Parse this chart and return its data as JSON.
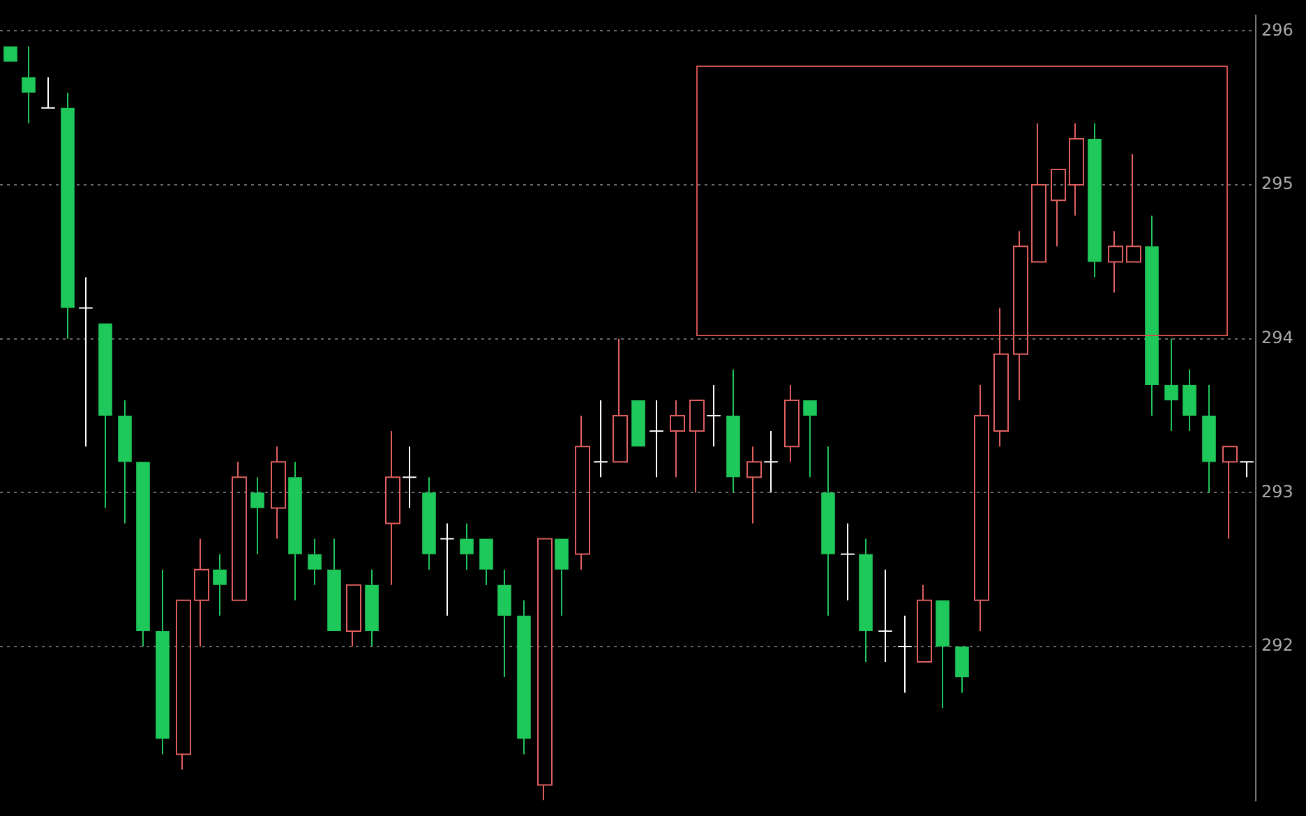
{
  "chart_data": {
    "type": "candlestick",
    "categories": [
      null,
      null,
      null,
      null,
      null,
      null,
      null,
      null,
      null,
      null,
      null,
      null,
      null,
      null,
      null,
      null,
      null,
      null,
      null,
      null,
      null,
      null,
      null,
      null,
      null,
      null,
      null,
      null,
      null,
      null,
      null,
      null,
      null,
      null,
      null,
      null,
      null,
      null,
      null,
      null,
      null,
      null,
      null,
      null,
      null,
      null,
      null,
      null,
      null,
      null,
      null,
      null,
      null,
      null,
      null,
      null,
      null,
      null,
      null,
      null,
      null,
      null,
      null,
      null,
      null,
      null
    ],
    "ohlc": [
      [
        295.9,
        295.9,
        295.8,
        295.8
      ],
      [
        295.7,
        295.9,
        295.4,
        295.6
      ],
      [
        295.5,
        295.7,
        295.5,
        295.5
      ],
      [
        295.5,
        295.6,
        294.0,
        294.2
      ],
      [
        294.2,
        294.4,
        293.3,
        294.2
      ],
      [
        294.1,
        294.1,
        292.9,
        293.5
      ],
      [
        293.5,
        293.6,
        292.8,
        293.2
      ],
      [
        293.2,
        293.2,
        292.0,
        292.1
      ],
      [
        292.1,
        292.5,
        291.3,
        291.4
      ],
      [
        291.3,
        292.3,
        291.2,
        292.3
      ],
      [
        292.3,
        292.7,
        292.0,
        292.5
      ],
      [
        292.5,
        292.6,
        292.2,
        292.4
      ],
      [
        292.3,
        293.2,
        292.3,
        293.1
      ],
      [
        293.0,
        293.1,
        292.6,
        292.9
      ],
      [
        292.9,
        293.3,
        292.7,
        293.2
      ],
      [
        293.1,
        293.2,
        292.3,
        292.6
      ],
      [
        292.6,
        292.7,
        292.4,
        292.5
      ],
      [
        292.5,
        292.7,
        292.1,
        292.1
      ],
      [
        292.1,
        292.4,
        292.0,
        292.4
      ],
      [
        292.4,
        292.5,
        292.0,
        292.1
      ],
      [
        292.8,
        293.4,
        292.4,
        293.1
      ],
      [
        293.1,
        293.3,
        292.9,
        293.1
      ],
      [
        293.0,
        293.1,
        292.5,
        292.6
      ],
      [
        292.7,
        292.8,
        292.2,
        292.7
      ],
      [
        292.7,
        292.8,
        292.5,
        292.6
      ],
      [
        292.7,
        292.7,
        292.4,
        292.5
      ],
      [
        292.4,
        292.5,
        291.8,
        292.2
      ],
      [
        292.2,
        292.3,
        291.3,
        291.4
      ],
      [
        291.1,
        292.7,
        291.0,
        292.7
      ],
      [
        292.7,
        292.7,
        292.2,
        292.5
      ],
      [
        292.6,
        293.5,
        292.5,
        293.3
      ],
      [
        293.2,
        293.6,
        293.1,
        293.2
      ],
      [
        293.2,
        294.0,
        293.2,
        293.5
      ],
      [
        293.6,
        293.6,
        293.3,
        293.3
      ],
      [
        293.4,
        293.6,
        293.1,
        293.4
      ],
      [
        293.4,
        293.6,
        293.1,
        293.5
      ],
      [
        293.4,
        293.6,
        293.0,
        293.6
      ],
      [
        293.5,
        293.7,
        293.3,
        293.5
      ],
      [
        293.5,
        293.8,
        293.0,
        293.1
      ],
      [
        293.1,
        293.3,
        292.8,
        293.2
      ],
      [
        293.2,
        293.4,
        293.0,
        293.2
      ],
      [
        293.3,
        293.7,
        293.2,
        293.6
      ],
      [
        293.6,
        293.6,
        293.1,
        293.5
      ],
      [
        293.0,
        293.3,
        292.2,
        292.6
      ],
      [
        292.6,
        292.8,
        292.3,
        292.6
      ],
      [
        292.6,
        292.7,
        291.9,
        292.1
      ],
      [
        292.1,
        292.5,
        291.9,
        292.1
      ],
      [
        292.0,
        292.2,
        291.7,
        292.0
      ],
      [
        291.9,
        292.4,
        291.9,
        292.3
      ],
      [
        292.3,
        292.3,
        291.6,
        292.0
      ],
      [
        292.0,
        292.0,
        291.7,
        291.8
      ],
      [
        292.3,
        293.7,
        292.1,
        293.5
      ],
      [
        293.4,
        294.2,
        293.3,
        293.9
      ],
      [
        293.9,
        294.7,
        293.6,
        294.6
      ],
      [
        294.5,
        295.4,
        294.5,
        295.0
      ],
      [
        294.9,
        295.1,
        294.6,
        295.1
      ],
      [
        295.0,
        295.4,
        294.8,
        295.3
      ],
      [
        295.3,
        295.4,
        294.4,
        294.5
      ],
      [
        294.5,
        294.7,
        294.3,
        294.6
      ],
      [
        294.5,
        295.2,
        294.5,
        294.6
      ],
      [
        294.6,
        294.8,
        293.5,
        293.7
      ],
      [
        293.7,
        294.0,
        293.4,
        293.6
      ],
      [
        293.7,
        293.8,
        293.4,
        293.5
      ],
      [
        293.5,
        293.7,
        293.0,
        293.2
      ],
      [
        293.2,
        293.3,
        292.7,
        293.3
      ],
      [
        293.2,
        293.2,
        293.1,
        293.2
      ]
    ],
    "colors": [
      "#1ec85a",
      "#1ec85a",
      "#ffffff",
      "#1ec85a",
      "#ffffff",
      "#1ec85a",
      "#1ec85a",
      "#1ec85a",
      "#1ec85a",
      "#e06060",
      "#e06060",
      "#1ec85a",
      "#e06060",
      "#1ec85a",
      "#e06060",
      "#1ec85a",
      "#1ec85a",
      "#1ec85a",
      "#e06060",
      "#1ec85a",
      "#e06060",
      "#ffffff",
      "#1ec85a",
      "#ffffff",
      "#1ec85a",
      "#1ec85a",
      "#1ec85a",
      "#1ec85a",
      "#e06060",
      "#1ec85a",
      "#e06060",
      "#ffffff",
      "#e06060",
      "#1ec85a",
      "#ffffff",
      "#e06060",
      "#e06060",
      "#ffffff",
      "#1ec85a",
      "#e06060",
      "#ffffff",
      "#e06060",
      "#1ec85a",
      "#1ec85a",
      "#ffffff",
      "#1ec85a",
      "#ffffff",
      "#ffffff",
      "#e06060",
      "#1ec85a",
      "#1ec85a",
      "#e06060",
      "#e06060",
      "#e06060",
      "#e06060",
      "#e06060",
      "#e06060",
      "#1ec85a",
      "#e06060",
      "#e06060",
      "#1ec85a",
      "#1ec85a",
      "#1ec85a",
      "#1ec85a",
      "#e06060",
      "#ffffff"
    ],
    "ylim": [
      291.0,
      296.1
    ],
    "yticks": [
      296,
      295,
      294,
      293,
      292
    ],
    "grid": "y",
    "legend": false,
    "tick_labels": "y"
  }
}
